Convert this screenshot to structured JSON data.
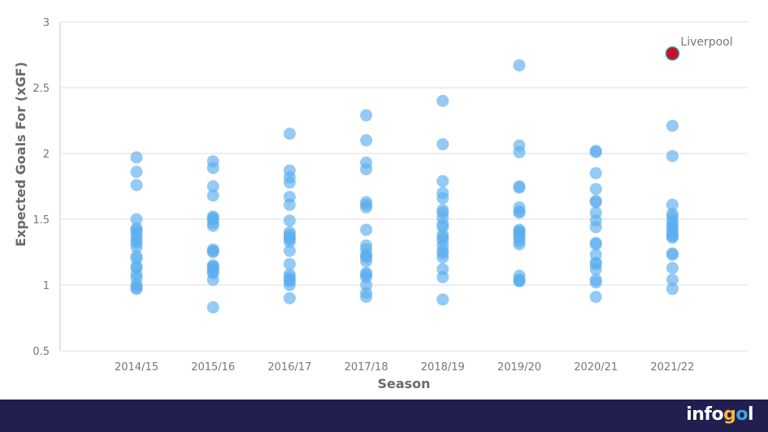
{
  "chart_data": {
    "type": "scatter",
    "title": "",
    "xlabel": "Season",
    "ylabel": "Expected Goals For (xGF)",
    "ylim": [
      0.5,
      3
    ],
    "yticks": [
      "0.5",
      "1",
      "1.5",
      "2",
      "2.5",
      "3"
    ],
    "grid": true,
    "categories": [
      "2014/15",
      "2015/16",
      "2016/17",
      "2017/18",
      "2018/19",
      "2019/20",
      "2020/21",
      "2021/22"
    ],
    "point_color": "#5aaeee",
    "highlight_color": "#c8102e",
    "series": [
      {
        "category": "2014/15",
        "values": [
          1.97,
          1.86,
          1.76,
          1.5,
          1.43,
          1.42,
          1.4,
          1.37,
          1.34,
          1.32,
          1.29,
          1.22,
          1.2,
          1.14,
          1.13,
          1.08,
          1.05,
          1.0,
          0.98,
          0.97
        ]
      },
      {
        "category": "2015/16",
        "values": [
          1.94,
          1.89,
          1.75,
          1.68,
          1.52,
          1.51,
          1.5,
          1.47,
          1.45,
          1.27,
          1.26,
          1.25,
          1.15,
          1.14,
          1.13,
          1.12,
          1.1,
          1.09,
          1.04,
          0.83
        ]
      },
      {
        "category": "2016/17",
        "values": [
          2.15,
          1.87,
          1.82,
          1.78,
          1.67,
          1.61,
          1.49,
          1.4,
          1.38,
          1.36,
          1.35,
          1.33,
          1.26,
          1.16,
          1.08,
          1.06,
          1.04,
          1.03,
          1.0,
          0.9
        ]
      },
      {
        "category": "2017/18",
        "values": [
          2.29,
          2.1,
          1.93,
          1.88,
          1.63,
          1.61,
          1.59,
          1.42,
          1.3,
          1.27,
          1.23,
          1.22,
          1.21,
          1.18,
          1.09,
          1.08,
          1.06,
          1.0,
          0.94,
          0.91
        ]
      },
      {
        "category": "2018/19",
        "values": [
          2.4,
          2.07,
          1.79,
          1.7,
          1.66,
          1.57,
          1.55,
          1.51,
          1.46,
          1.44,
          1.38,
          1.36,
          1.34,
          1.3,
          1.26,
          1.24,
          1.21,
          1.12,
          1.06,
          0.89
        ]
      },
      {
        "category": "2019/20",
        "values": [
          2.67,
          2.06,
          2.01,
          1.75,
          1.74,
          1.59,
          1.56,
          1.55,
          1.42,
          1.41,
          1.4,
          1.38,
          1.37,
          1.36,
          1.33,
          1.31,
          1.07,
          1.04,
          1.03,
          1.03
        ]
      },
      {
        "category": "2020/21",
        "values": [
          2.02,
          2.01,
          1.85,
          1.73,
          1.64,
          1.63,
          1.55,
          1.49,
          1.44,
          1.32,
          1.31,
          1.23,
          1.17,
          1.16,
          1.12,
          1.04,
          1.02,
          0.91
        ]
      },
      {
        "category": "2021/22",
        "values": [
          2.21,
          1.98,
          1.61,
          1.54,
          1.52,
          1.49,
          1.46,
          1.44,
          1.42,
          1.4,
          1.38,
          1.37,
          1.36,
          1.24,
          1.23,
          1.13,
          1.04,
          0.97
        ]
      }
    ],
    "highlight": {
      "category": "2021/22",
      "value": 2.76,
      "label": "Liverpool"
    }
  },
  "footer": {
    "brand": "infogol"
  }
}
